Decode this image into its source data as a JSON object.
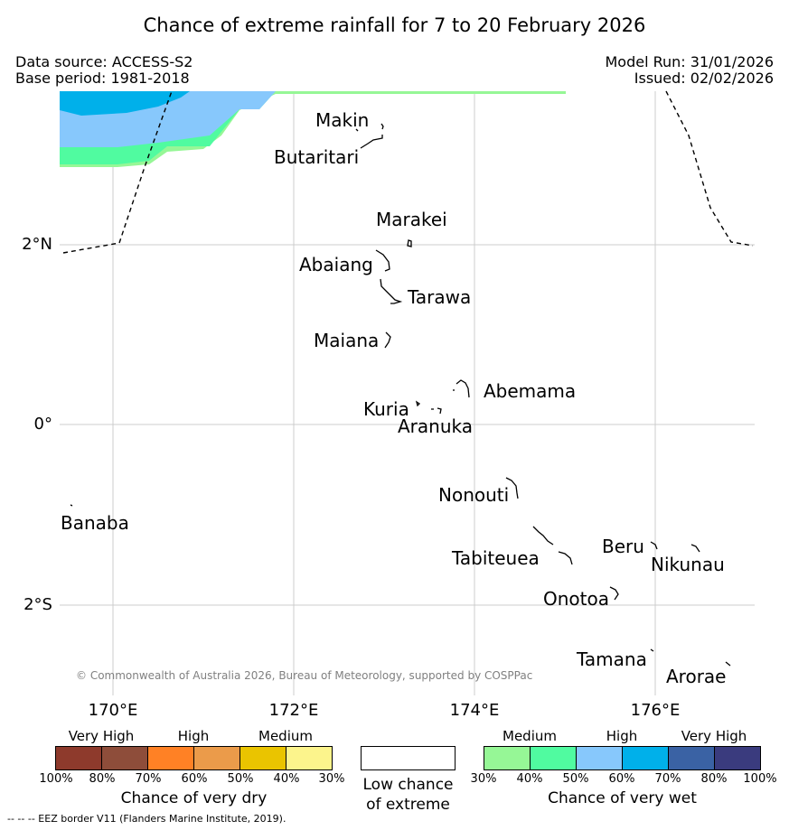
{
  "title": "Chance of extreme rainfall for 7 to 20 February 2026",
  "info": {
    "data_source": "Data source: ACCESS-S2",
    "base_period": "Base period: 1981-2018",
    "model_run": "Model Run: 31/01/2026",
    "issued": "Issued: 02/02/2026"
  },
  "axes": {
    "lat_labels": [
      "2°N",
      "0°",
      "2°S"
    ],
    "lon_labels": [
      "170°E",
      "172°E",
      "174°E",
      "176°E"
    ]
  },
  "places": [
    "Makin",
    "Butaritari",
    "Marakei",
    "Abaiang",
    "Tarawa",
    "Maiana",
    "Abemama",
    "Kuria",
    "Aranuka",
    "Nonouti",
    "Banaba",
    "Tabiteuea",
    "Beru",
    "Nikunau",
    "Onotoa",
    "Tamana",
    "Arorae"
  ],
  "copyright": "© Commonwealth of Australia 2026, Bureau of Meteorology, supported by COSPPac",
  "legend": {
    "dry": {
      "groups": [
        "Very High",
        "High",
        "Medium"
      ],
      "ticks": [
        "100%",
        "80%",
        "70%",
        "60%",
        "50%",
        "40%",
        "30%"
      ],
      "colors": [
        "#8e3a2c",
        "#8e4d3a",
        "#ff8125",
        "#eb9b4a",
        "#eac400",
        "#fcf48c"
      ],
      "title": "Chance of very dry"
    },
    "low": {
      "title_line1": "Low chance",
      "title_line2": "of extreme",
      "color": "#ffffff"
    },
    "wet": {
      "groups": [
        "Medium",
        "High",
        "Very High"
      ],
      "ticks": [
        "30%",
        "40%",
        "50%",
        "60%",
        "70%",
        "80%",
        "100%"
      ],
      "colors": [
        "#96f796",
        "#50fba0",
        "#87c8fc",
        "#00b0ea",
        "#3a62a4",
        "#3a3b7e"
      ],
      "title": "Chance of very wet"
    }
  },
  "footer": "--  --  -- EEZ border V11 (Flanders Marine Institute, 2019)."
}
